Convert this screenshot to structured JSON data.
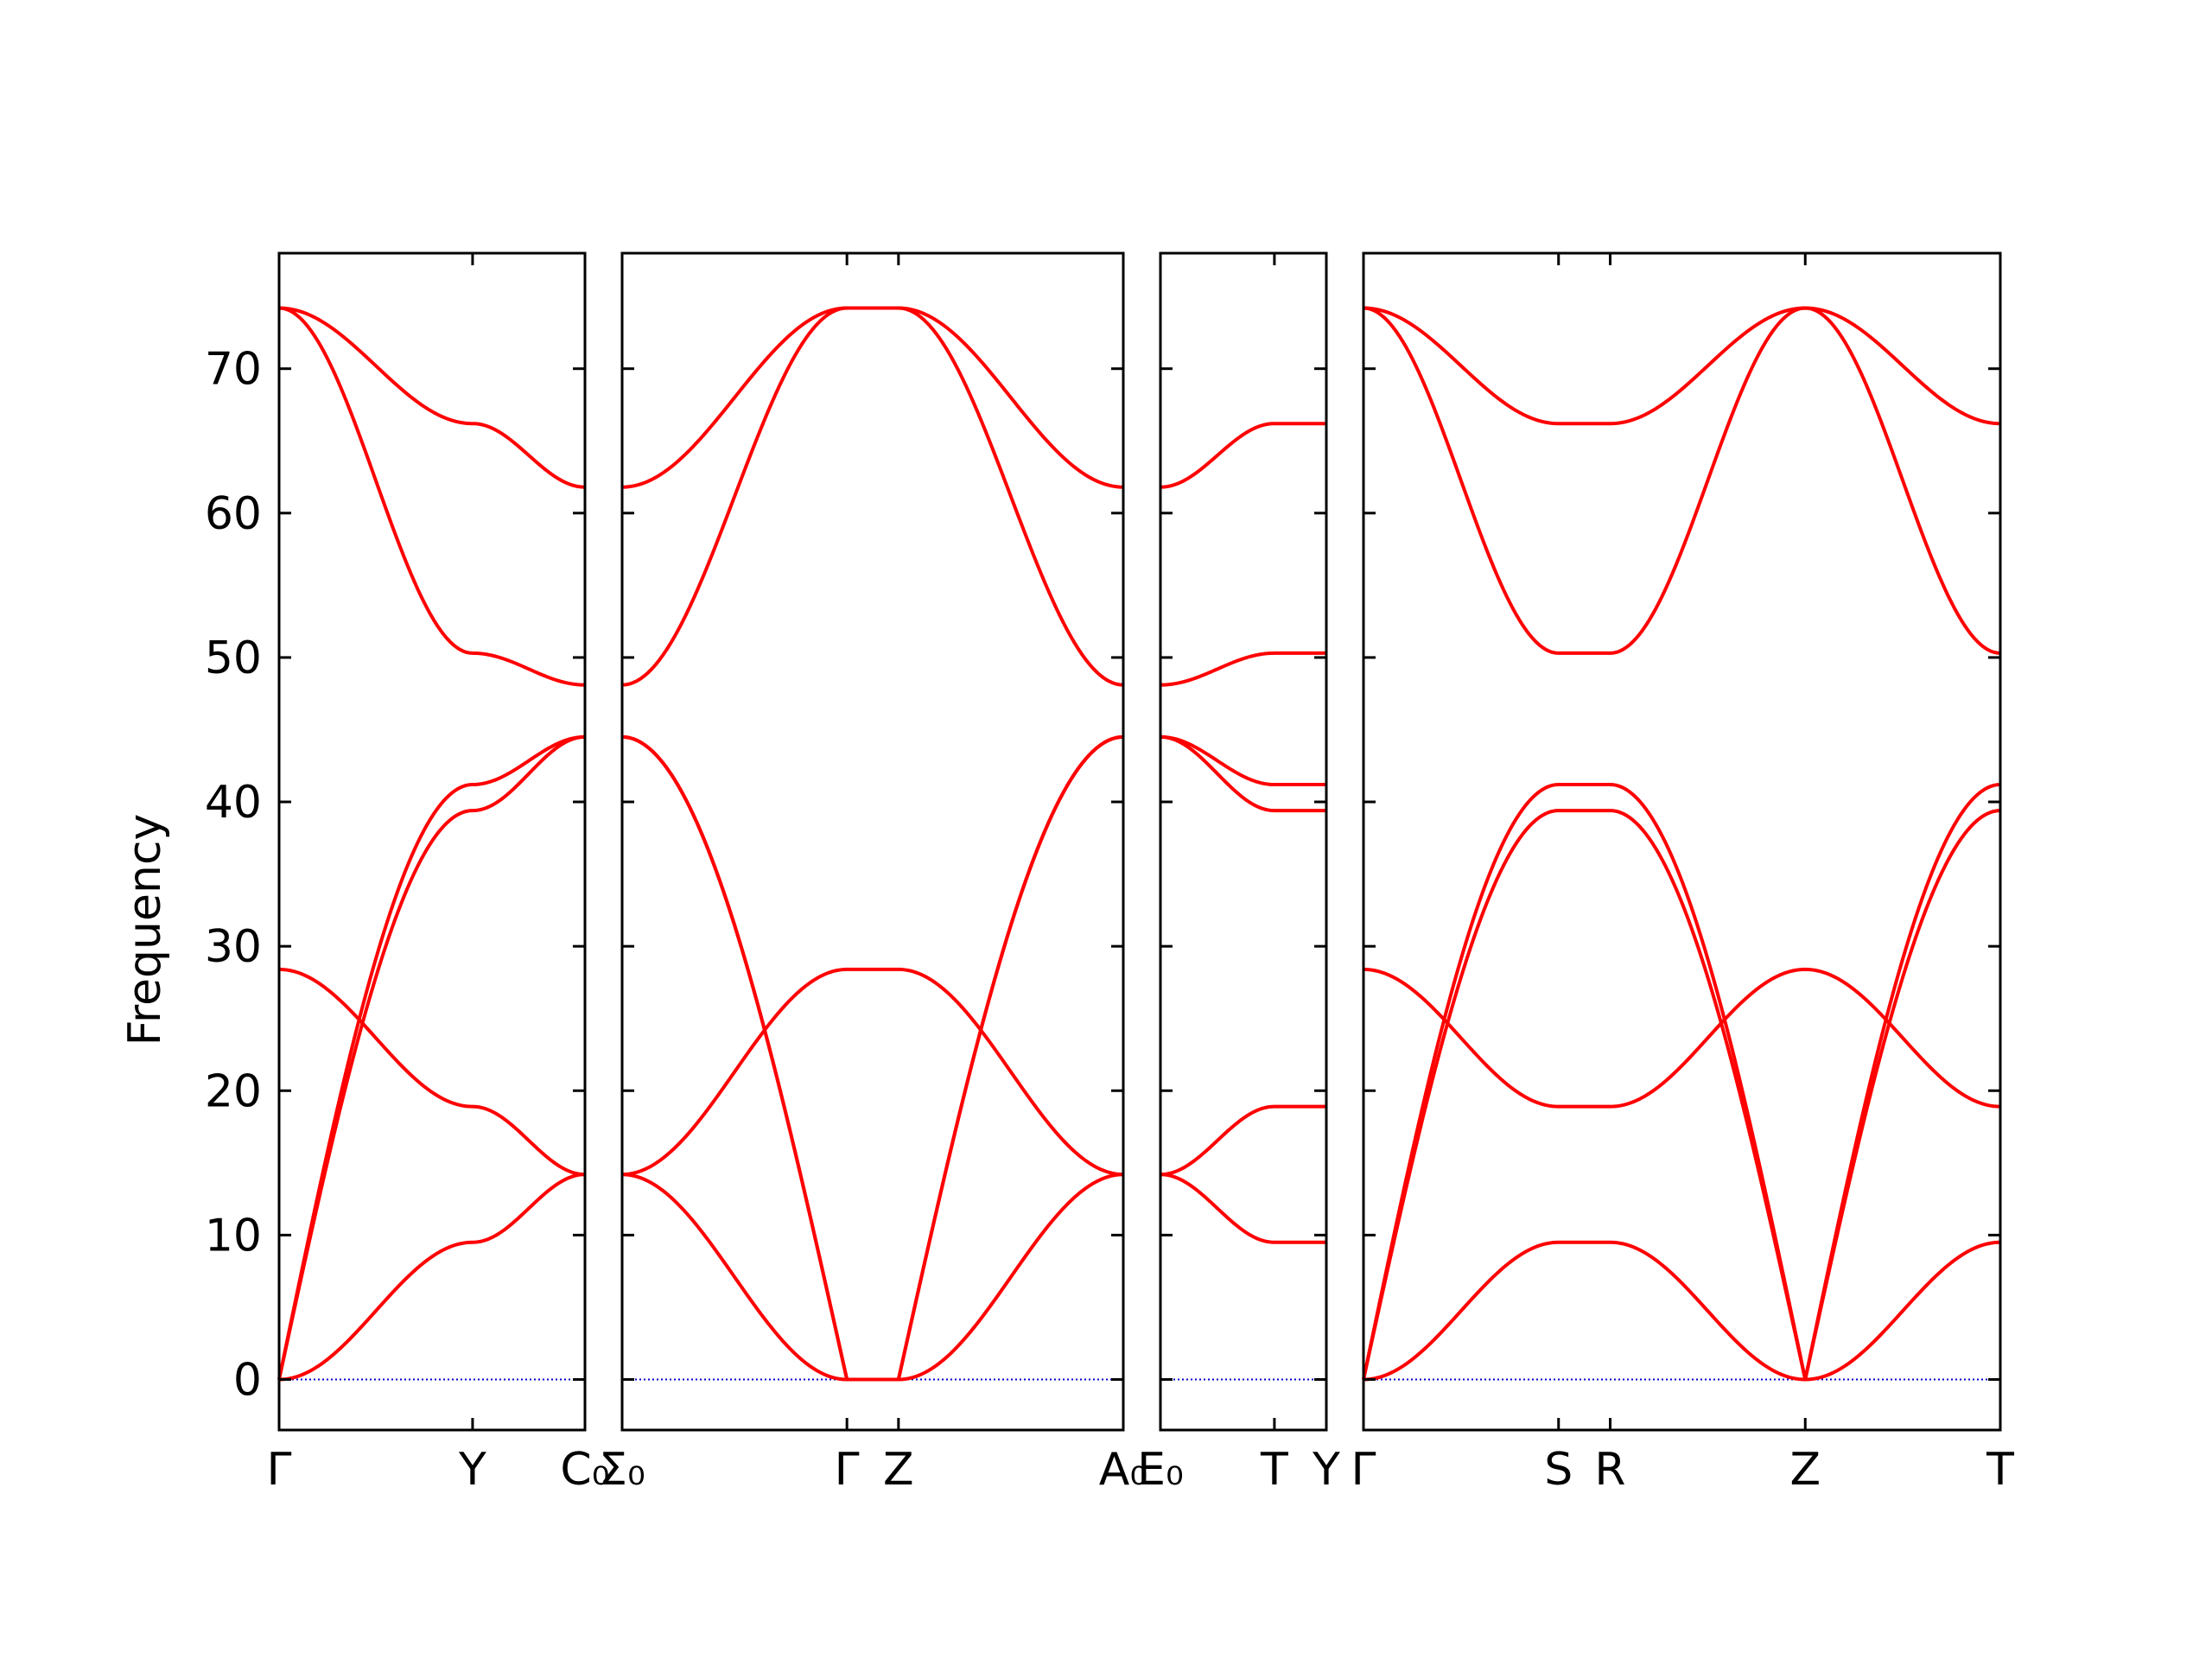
{
  "chart_data": {
    "type": "line",
    "ylabel": "Frequency",
    "ylim": [
      -3.5,
      78
    ],
    "yticks": [
      0,
      10,
      20,
      30,
      40,
      50,
      60,
      70
    ],
    "grid": false,
    "legend": "none",
    "colors": {
      "bands": "#ff0000",
      "zero_line": "#0000cc",
      "frame": "#000000"
    },
    "panels": [
      {
        "segments": [
          {
            "from": "Γ",
            "to": "Y",
            "length": 1.36
          },
          {
            "from": "Y",
            "to": "C₀",
            "length": 0.79
          }
        ],
        "tick_labels": [
          "Γ",
          "Y",
          "C₀"
        ],
        "bands": [
          [
            0.0,
            9.5,
            14.2
          ],
          [
            28.4,
            18.9,
            14.2
          ],
          [
            0.0,
            39.4,
            44.5
          ],
          [
            0.0,
            41.2,
            44.5
          ],
          [
            74.2,
            50.3,
            48.1
          ],
          [
            74.2,
            66.2,
            61.8
          ]
        ]
      },
      {
        "segments": [
          {
            "from": "Σ₀",
            "to": "Γ",
            "length": 1.57
          },
          {
            "from": "Γ",
            "to": "Z",
            "length": 0.36
          },
          {
            "from": "Z",
            "to": "A₀",
            "length": 1.57
          }
        ],
        "tick_labels": [
          "Σ₀",
          "Γ",
          "Z",
          "A₀"
        ],
        "bands": [
          [
            14.2,
            0.0,
            0.0,
            14.2
          ],
          [
            14.2,
            28.4,
            28.4,
            14.2
          ],
          [
            44.5,
            0.0,
            0.0,
            44.5
          ],
          [
            44.5,
            0.0,
            0.0,
            44.5
          ],
          [
            48.1,
            74.2,
            74.2,
            48.1
          ],
          [
            61.8,
            74.2,
            74.2,
            61.8
          ]
        ]
      },
      {
        "segments": [
          {
            "from": "E₀",
            "to": "T",
            "length": 0.79
          },
          {
            "from": "T",
            "to": "Y",
            "length": 0.36
          }
        ],
        "tick_labels": [
          "E₀",
          "T",
          "Y"
        ],
        "bands": [
          [
            14.2,
            9.5,
            9.5
          ],
          [
            14.2,
            18.9,
            18.9
          ],
          [
            44.5,
            39.4,
            39.4
          ],
          [
            44.5,
            41.2,
            41.2
          ],
          [
            48.1,
            50.3,
            50.3
          ],
          [
            61.8,
            66.2,
            66.2
          ]
        ]
      },
      {
        "segments": [
          {
            "from": "Γ",
            "to": "S",
            "length": 1.36
          },
          {
            "from": "S",
            "to": "R",
            "length": 0.36
          },
          {
            "from": "R",
            "to": "Z",
            "length": 1.36
          },
          {
            "from": "Z",
            "to": "T",
            "length": 1.36
          }
        ],
        "tick_labels": [
          "Γ",
          "S",
          "R",
          "Z",
          "T"
        ],
        "bands": [
          [
            0.0,
            9.5,
            9.5,
            0.0,
            9.5
          ],
          [
            28.4,
            18.9,
            18.9,
            28.4,
            18.9
          ],
          [
            0.0,
            39.4,
            39.4,
            0.0,
            39.4
          ],
          [
            0.0,
            41.2,
            41.2,
            0.0,
            41.2
          ],
          [
            74.2,
            50.3,
            50.3,
            74.2,
            50.3
          ],
          [
            74.2,
            66.2,
            66.2,
            74.2,
            66.2
          ]
        ]
      }
    ]
  }
}
